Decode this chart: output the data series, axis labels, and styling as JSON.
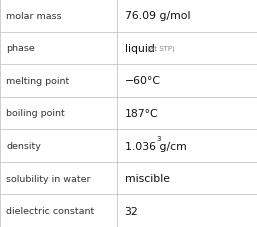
{
  "rows": [
    {
      "label": "molar mass",
      "value": "76.09 g/mol",
      "suffix": null,
      "sup": null
    },
    {
      "label": "phase",
      "value": "liquid",
      "suffix": " (at STP)",
      "sup": null
    },
    {
      "label": "melting point",
      "value": "−60°C",
      "suffix": null,
      "sup": null
    },
    {
      "label": "boiling point",
      "value": "187°C",
      "suffix": null,
      "sup": null
    },
    {
      "label": "density",
      "value": "1.036 g/cm",
      "suffix": null,
      "sup": "3"
    },
    {
      "label": "solubility in water",
      "value": "miscible",
      "suffix": null,
      "sup": null
    },
    {
      "label": "dielectric constant",
      "value": "32",
      "suffix": null,
      "sup": null
    }
  ],
  "bg_color": "#ffffff",
  "border_color": "#bbbbbb",
  "label_color": "#333333",
  "value_color": "#111111",
  "suffix_color": "#888888",
  "label_fontsize": 6.8,
  "value_fontsize": 7.8,
  "suffix_fontsize": 5.0,
  "sup_fontsize": 5.0,
  "col_split": 0.455,
  "fig_width": 2.57,
  "fig_height": 2.28,
  "dpi": 100
}
